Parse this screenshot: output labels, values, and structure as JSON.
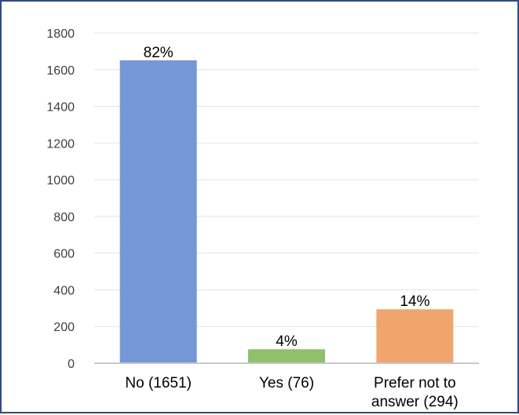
{
  "chart_data": {
    "type": "bar",
    "categories": [
      {
        "lines": [
          "No (1651)"
        ]
      },
      {
        "lines": [
          "Yes (76)"
        ]
      },
      {
        "lines": [
          "Prefer not to",
          "answer (294)"
        ]
      }
    ],
    "values": [
      1651,
      76,
      294
    ],
    "data_labels": [
      "82%",
      "4%",
      "14%"
    ],
    "colors": [
      "#7498d8",
      "#8fc06a",
      "#f1a56e"
    ],
    "ylim": [
      0,
      1800
    ],
    "yticks": [
      "0",
      "200",
      "400",
      "600",
      "800",
      "1000",
      "1200",
      "1400",
      "1600",
      "1800"
    ],
    "grid": true,
    "title": "",
    "xlabel": "",
    "ylabel": ""
  }
}
